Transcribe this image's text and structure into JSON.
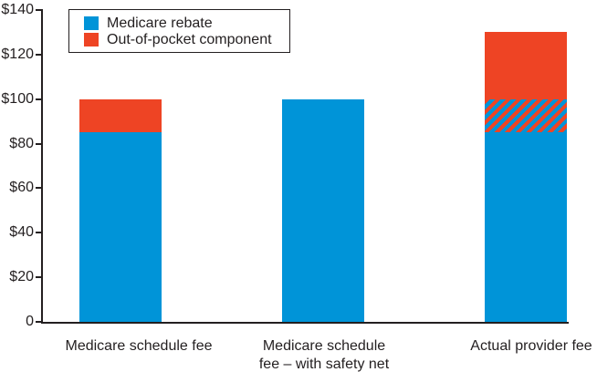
{
  "chart_data": {
    "type": "bar",
    "stacked": true,
    "title": "",
    "xlabel": "",
    "ylabel": "",
    "grid": false,
    "background": "#ffffff",
    "y_axis": {
      "min": 0,
      "max": 140,
      "tick_step": 20,
      "tick_values": [
        0,
        20,
        40,
        60,
        80,
        100,
        120,
        140
      ],
      "tick_labels": [
        "0",
        "$20",
        "$40",
        "$60",
        "$80",
        "$100",
        "$120",
        "$140"
      ]
    },
    "categories": [
      "Medicare schedule fee",
      "Medicare schedule fee – with safety net",
      "Actual provider fee"
    ],
    "category_label_lines": [
      [
        "Medicare schedule fee"
      ],
      [
        "Medicare schedule",
        "fee – with safety net"
      ],
      [
        "Actual provider fee"
      ]
    ],
    "bars": [
      {
        "category": "Medicare schedule fee",
        "total": 100,
        "segments": [
          {
            "series": "Medicare rebate",
            "value": 85,
            "style": "blue"
          },
          {
            "series": "Out-of-pocket component",
            "value": 15,
            "style": "red"
          }
        ]
      },
      {
        "category": "Medicare schedule fee – with safety net",
        "total": 100,
        "segments": [
          {
            "series": "Medicare rebate",
            "value": 100,
            "style": "blue"
          }
        ]
      },
      {
        "category": "Actual provider fee",
        "total": 130,
        "segments": [
          {
            "series": "Medicare rebate",
            "value": 85,
            "style": "blue"
          },
          {
            "series": "Medicare rebate / out-of-pocket overlap (hatched)",
            "value": 15,
            "style": "hatch"
          },
          {
            "series": "Out-of-pocket component",
            "value": 30,
            "style": "red"
          }
        ]
      }
    ],
    "legend": {
      "position": "top-left-inside",
      "items": [
        {
          "label": "Medicare rebate",
          "swatch": "blue"
        },
        {
          "label": "Out-of-pocket component",
          "swatch": "red"
        }
      ]
    },
    "colors": {
      "blue": "#0094d8",
      "red": "#ee4424",
      "axis": "#231f20",
      "hatch_description": "diagonal red stripes over blue"
    }
  }
}
